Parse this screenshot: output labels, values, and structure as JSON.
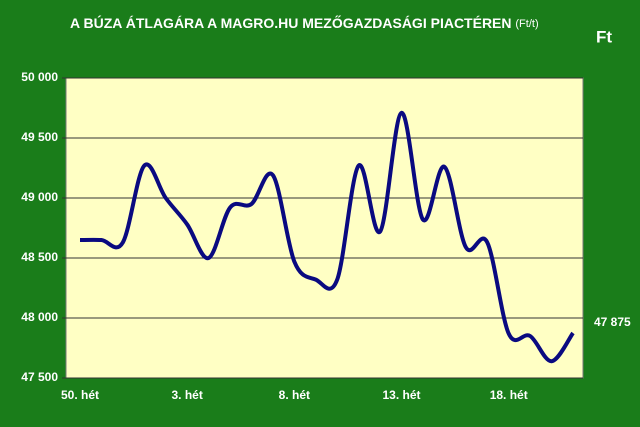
{
  "chart_data": {
    "type": "line",
    "title": "A BÚZA ÁTLAGÁRA A MAGRO.HU MEZŐGAZDASÁGI PIACTÉREN",
    "title_unit": "(Ft/t)",
    "y_label": "Ft",
    "categories": [
      "50. hét",
      null,
      null,
      null,
      null,
      "3. hét",
      null,
      null,
      null,
      null,
      "8. hét",
      null,
      null,
      null,
      null,
      "13. hét",
      null,
      null,
      null,
      null,
      "18. hét",
      null,
      null,
      null
    ],
    "series": [
      {
        "name": "Búza",
        "color": "#0a0a80",
        "values": [
          48650,
          48650,
          48630,
          49270,
          49000,
          48780,
          48500,
          48920,
          48950,
          49190,
          48470,
          48320,
          48320,
          49270,
          48720,
          49710,
          48820,
          49260,
          48590,
          48630,
          47870,
          47850,
          47640,
          47875
        ],
        "value_labels": [
          null,
          null,
          null,
          null,
          null,
          null,
          null,
          null,
          null,
          null,
          null,
          null,
          null,
          null,
          null,
          null,
          null,
          null,
          null,
          null,
          null,
          null,
          null,
          "47 875"
        ]
      }
    ],
    "ylim": [
      47500,
      50000
    ],
    "yticks": [
      {
        "value": 47500,
        "label": "47 500"
      },
      {
        "value": 48000,
        "label": "48 000"
      },
      {
        "value": 48500,
        "label": "48 500"
      },
      {
        "value": 49000,
        "label": "49 000"
      },
      {
        "value": 49500,
        "label": "49 500"
      },
      {
        "value": 50000,
        "label": "50 000"
      }
    ],
    "grid": true
  }
}
